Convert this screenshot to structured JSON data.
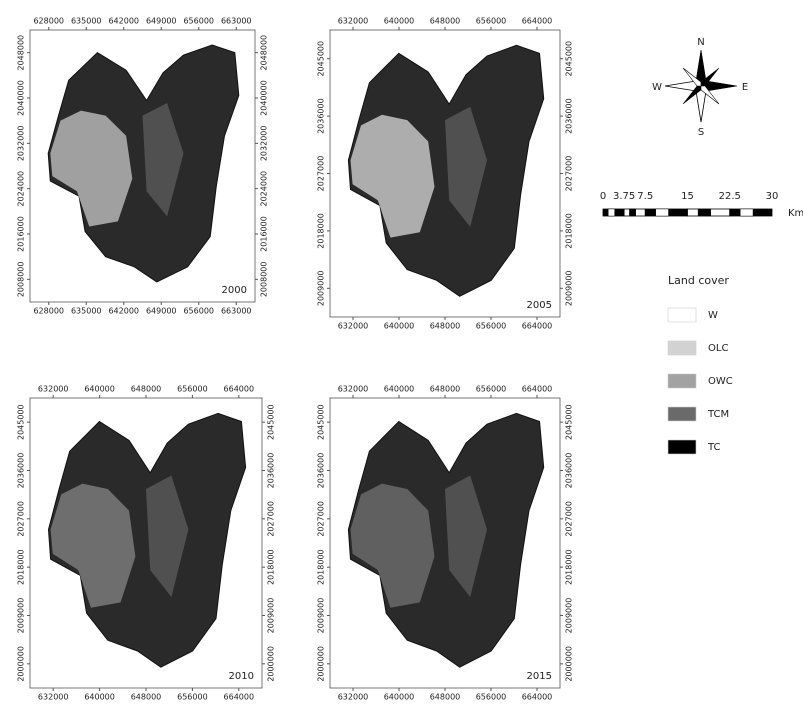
{
  "maps": [
    {
      "year": "2000",
      "top_ticks": [
        628000,
        635000,
        642000,
        649000,
        656000,
        663000
      ],
      "bottom_ticks": [
        628000,
        635000,
        642000,
        649000,
        656000,
        663000
      ],
      "left_ticks": [
        2048000,
        2040000,
        2032000,
        2024000,
        2016000,
        2008000
      ],
      "right_ticks": [
        2048000,
        2040000,
        2032000,
        2024000,
        2016000,
        2008000
      ]
    },
    {
      "year": "2005",
      "top_ticks": [
        632000,
        640000,
        648000,
        656000,
        664000
      ],
      "bottom_ticks": [
        632000,
        640000,
        648000,
        656000,
        664000
      ],
      "left_ticks": [
        2045000,
        2036000,
        2027000,
        2018000,
        2009000
      ],
      "right_ticks": [
        2045000,
        2036000,
        2027000,
        2018000,
        2009000
      ]
    },
    {
      "year": "2010",
      "top_ticks": [
        632000,
        640000,
        648000,
        656000,
        664000
      ],
      "bottom_ticks": [
        632000,
        640000,
        648000,
        656000,
        664000
      ],
      "left_ticks": [
        2045000,
        2036000,
        2027000,
        2018000,
        2009000,
        2000000
      ],
      "right_ticks": [
        2045000,
        2036000,
        2027000,
        2018000,
        2009000,
        2000000
      ]
    },
    {
      "year": "2015",
      "top_ticks": [
        632000,
        640000,
        648000,
        656000,
        664000
      ],
      "bottom_ticks": [
        632000,
        640000,
        648000,
        656000,
        664000
      ],
      "left_ticks": [
        2045000,
        2036000,
        2027000,
        2018000,
        2009000,
        2000000
      ],
      "right_ticks": [
        2045000,
        2036000,
        2027000,
        2018000,
        2009000,
        2000000
      ]
    }
  ],
  "compass": {
    "north": "N",
    "south": "S",
    "east": "E",
    "west": "W"
  },
  "scale_bar": {
    "labels": [
      0,
      3.75,
      7.5,
      15,
      22.5,
      30
    ],
    "unit": "Km"
  },
  "legend": {
    "title": "Land cover",
    "items": [
      {
        "label": "W",
        "color": "#ffffff"
      },
      {
        "label": "OLC",
        "color": "#d2d2d2"
      },
      {
        "label": "OWC",
        "color": "#a2a2a2"
      },
      {
        "label": "TCM",
        "color": "#6a6a6a"
      },
      {
        "label": "TC",
        "color": "#000000"
      }
    ]
  }
}
